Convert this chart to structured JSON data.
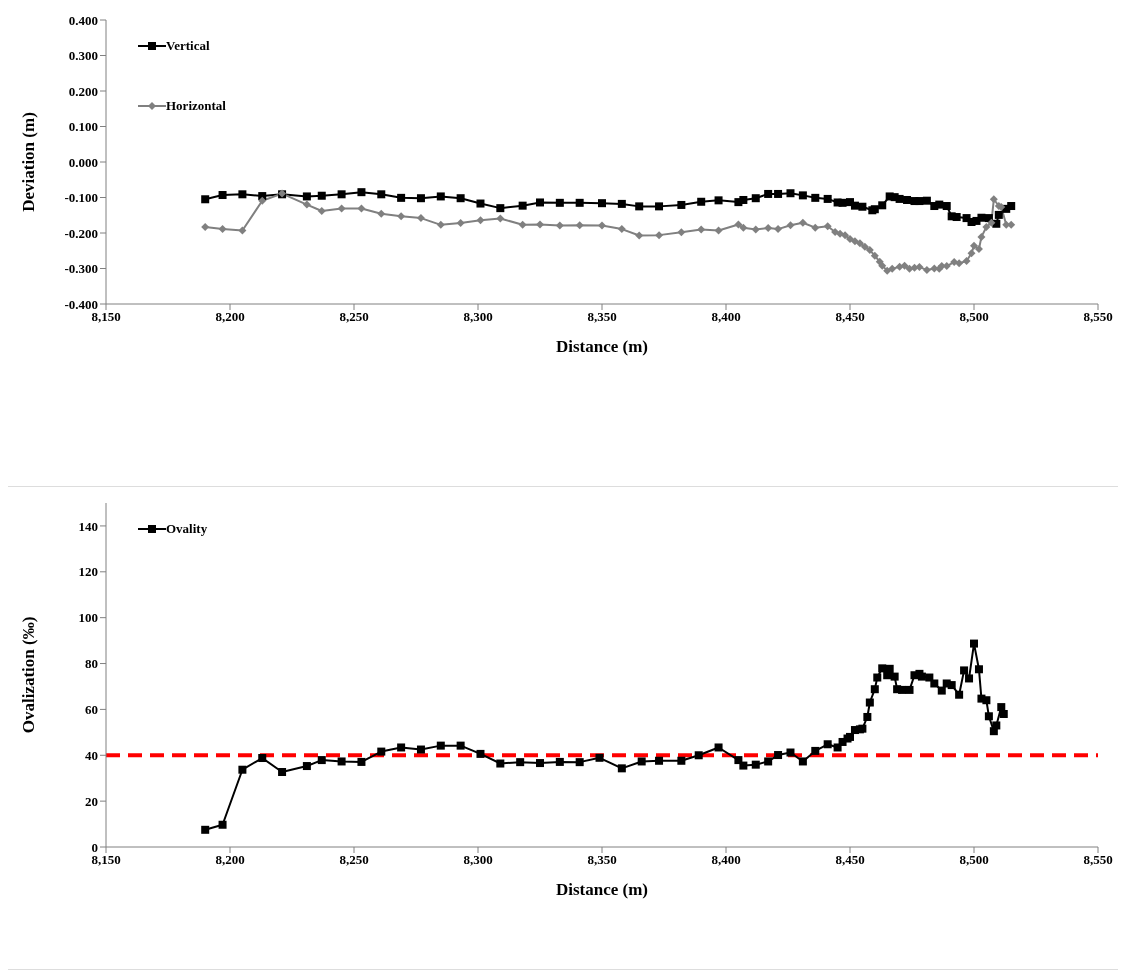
{
  "chart_data": [
    {
      "type": "line",
      "xlabel": "Distance (m)",
      "ylabel": "Deviation (m)",
      "xlim": [
        8150,
        8550
      ],
      "xticks": [
        {
          "value": 8150,
          "label": "8,150"
        },
        {
          "value": 8200,
          "label": "8,200"
        },
        {
          "value": 8250,
          "label": "8,250"
        },
        {
          "value": 8300,
          "label": "8,300"
        },
        {
          "value": 8350,
          "label": "8,350"
        },
        {
          "value": 8400,
          "label": "8,400"
        },
        {
          "value": 8450,
          "label": "8,450"
        },
        {
          "value": 8500,
          "label": "8,500"
        },
        {
          "value": 8550,
          "label": "8,550"
        }
      ],
      "ylim": [
        -0.4,
        0.4
      ],
      "yticks": [
        {
          "value": -0.4,
          "label": "-0.400"
        },
        {
          "value": -0.3,
          "label": "-0.300"
        },
        {
          "value": -0.2,
          "label": "-0.200"
        },
        {
          "value": -0.1,
          "label": "-0.100"
        },
        {
          "value": 0,
          "label": "0.000"
        },
        {
          "value": 0.1,
          "label": "0.100"
        },
        {
          "value": 0.2,
          "label": "0.200"
        },
        {
          "value": 0.3,
          "label": "0.300"
        },
        {
          "value": 0.4,
          "label": "0.400"
        }
      ],
      "grid": false,
      "legend": "top left",
      "line_style": "solid",
      "series": [
        {
          "name": "Vertical",
          "color": "#000000",
          "marker": "square",
          "x": [
            8190,
            8197,
            8205,
            8213,
            8221,
            8231,
            8237,
            8245,
            8253,
            8261,
            8269,
            8277,
            8285,
            8293,
            8301,
            8309,
            8318,
            8325,
            8333,
            8341,
            8350,
            8358,
            8365,
            8373,
            8382,
            8390,
            8397,
            8405,
            8407,
            8412,
            8417,
            8421,
            8426,
            8431,
            8436,
            8441,
            8445,
            8447,
            8450,
            8452,
            8455,
            8459,
            8460,
            8463,
            8466,
            8468,
            8470,
            8473,
            8476,
            8478,
            8481,
            8484,
            8486,
            8489,
            8491,
            8493,
            8497,
            8499,
            8501,
            8503,
            8506,
            8509,
            8510,
            8513,
            8515
          ],
          "values": [
            -0.105,
            -0.093,
            -0.091,
            -0.096,
            -0.091,
            -0.097,
            -0.095,
            -0.091,
            -0.085,
            -0.091,
            -0.101,
            -0.102,
            -0.097,
            -0.102,
            -0.117,
            -0.13,
            -0.123,
            -0.114,
            -0.115,
            -0.115,
            -0.116,
            -0.118,
            -0.125,
            -0.125,
            -0.121,
            -0.112,
            -0.108,
            -0.113,
            -0.107,
            -0.102,
            -0.09,
            -0.09,
            -0.088,
            -0.094,
            -0.101,
            -0.104,
            -0.114,
            -0.115,
            -0.113,
            -0.123,
            -0.126,
            -0.136,
            -0.133,
            -0.122,
            -0.097,
            -0.099,
            -0.104,
            -0.107,
            -0.11,
            -0.11,
            -0.109,
            -0.124,
            -0.12,
            -0.124,
            -0.153,
            -0.155,
            -0.158,
            -0.169,
            -0.166,
            -0.157,
            -0.158,
            -0.174,
            -0.149,
            -0.132,
            -0.124
          ]
        },
        {
          "name": "Horizontal",
          "color": "#808080",
          "marker": "diamond",
          "x": [
            8190,
            8197,
            8205,
            8213,
            8221,
            8231,
            8237,
            8245,
            8253,
            8261,
            8269,
            8277,
            8285,
            8293,
            8301,
            8309,
            8318,
            8325,
            8333,
            8341,
            8350,
            8358,
            8365,
            8373,
            8382,
            8390,
            8397,
            8405,
            8407,
            8412,
            8417,
            8421,
            8426,
            8431,
            8436,
            8441,
            8444,
            8446,
            8448,
            8450,
            8452,
            8454,
            8456,
            8458,
            8460,
            8462,
            8463,
            8465,
            8467,
            8470,
            8472,
            8474,
            8476,
            8478,
            8481,
            8484,
            8486,
            8487,
            8489,
            8492,
            8494,
            8497,
            8499,
            8500,
            8502,
            8503,
            8505,
            8507,
            8508,
            8510,
            8511,
            8513,
            8515
          ],
          "values": [
            -0.183,
            -0.189,
            -0.193,
            -0.109,
            -0.089,
            -0.12,
            -0.138,
            -0.131,
            -0.131,
            -0.146,
            -0.153,
            -0.158,
            -0.177,
            -0.172,
            -0.164,
            -0.159,
            -0.177,
            -0.176,
            -0.179,
            -0.178,
            -0.179,
            -0.189,
            -0.207,
            -0.206,
            -0.198,
            -0.19,
            -0.193,
            -0.176,
            -0.185,
            -0.19,
            -0.186,
            -0.189,
            -0.178,
            -0.171,
            -0.185,
            -0.181,
            -0.197,
            -0.202,
            -0.206,
            -0.217,
            -0.223,
            -0.229,
            -0.239,
            -0.248,
            -0.264,
            -0.281,
            -0.292,
            -0.306,
            -0.301,
            -0.295,
            -0.292,
            -0.301,
            -0.298,
            -0.296,
            -0.304,
            -0.3,
            -0.301,
            -0.293,
            -0.293,
            -0.282,
            -0.285,
            -0.279,
            -0.257,
            -0.236,
            -0.245,
            -0.211,
            -0.183,
            -0.171,
            -0.105,
            -0.124,
            -0.127,
            -0.177,
            -0.177
          ]
        }
      ]
    },
    {
      "type": "line",
      "xlabel": "Distance (m)",
      "ylabel": "Ovalization (‰)",
      "xlim": [
        8150,
        8550
      ],
      "xticks": [
        {
          "value": 8150,
          "label": "8,150"
        },
        {
          "value": 8200,
          "label": "8,200"
        },
        {
          "value": 8250,
          "label": "8,250"
        },
        {
          "value": 8300,
          "label": "8,300"
        },
        {
          "value": 8350,
          "label": "8,350"
        },
        {
          "value": 8400,
          "label": "8,400"
        },
        {
          "value": 8450,
          "label": "8,450"
        },
        {
          "value": 8500,
          "label": "8,500"
        },
        {
          "value": 8550,
          "label": "8,550"
        }
      ],
      "ylim": [
        0,
        150
      ],
      "yticks": [
        0,
        20,
        40,
        60,
        80,
        100,
        120,
        140
      ],
      "grid": false,
      "legend": "top left",
      "line_style": "solid",
      "ref_lines": [
        {
          "axis": "y",
          "value": 40,
          "color": "#ff0000",
          "line_style": "dashed"
        }
      ],
      "series": [
        {
          "name": "Ovality",
          "color": "#000000",
          "marker": "square",
          "x": [
            8190,
            8197,
            8205,
            8213,
            8221,
            8231,
            8237,
            8245,
            8253,
            8261,
            8269,
            8277,
            8285,
            8293,
            8301,
            8309,
            8317,
            8325,
            8333,
            8341,
            8349,
            8358,
            8366,
            8373,
            8382,
            8389,
            8397,
            8405,
            8407,
            8412,
            8417,
            8421,
            8426,
            8431,
            8436,
            8441,
            8445,
            8447,
            8449,
            8450,
            8452,
            8454,
            8455,
            8457,
            8458,
            8460,
            8461,
            8463,
            8465,
            8466,
            8468,
            8469,
            8471,
            8474,
            8476,
            8478,
            8479,
            8482,
            8484,
            8487,
            8489,
            8491,
            8494,
            8496,
            8498,
            8500,
            8502,
            8503,
            8505,
            8506,
            8508,
            8509,
            8511,
            8512
          ],
          "values": [
            7.5,
            9.7,
            33.7,
            38.8,
            32.7,
            35.3,
            37.9,
            37.3,
            37.1,
            41.6,
            43.4,
            42.5,
            44.2,
            44.2,
            40.6,
            36.4,
            37.0,
            36.6,
            37.1,
            37.0,
            38.9,
            34.3,
            37.3,
            37.6,
            37.6,
            40.0,
            43.4,
            37.9,
            35.5,
            35.9,
            37.3,
            40.1,
            41.2,
            37.3,
            41.9,
            44.8,
            43.4,
            45.8,
            47.3,
            48.0,
            51.0,
            51.3,
            51.6,
            56.7,
            63.0,
            68.8,
            73.9,
            77.9,
            74.9,
            77.7,
            74.3,
            68.8,
            68.5,
            68.5,
            74.9,
            75.5,
            74.3,
            73.9,
            71.3,
            68.2,
            71.3,
            70.6,
            66.4,
            77.0,
            73.5,
            88.7,
            77.5,
            64.7,
            64.0,
            57.0,
            50.5,
            53.0,
            61.0,
            58.0
          ]
        }
      ]
    }
  ]
}
